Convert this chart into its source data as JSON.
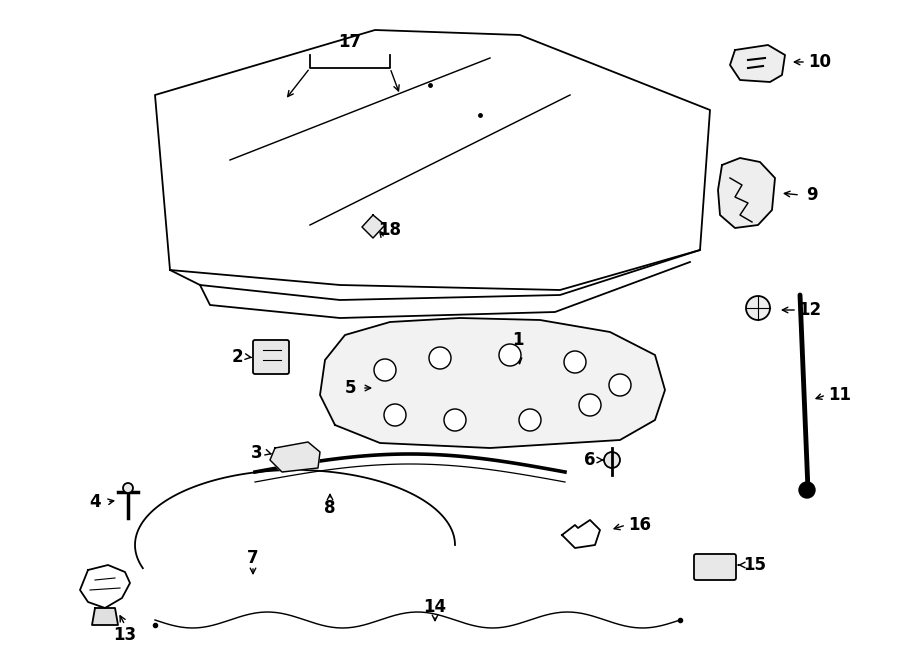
{
  "bg_color": "#ffffff",
  "lc": "#000000",
  "figsize": [
    9.0,
    6.61
  ],
  "dpi": 100
}
